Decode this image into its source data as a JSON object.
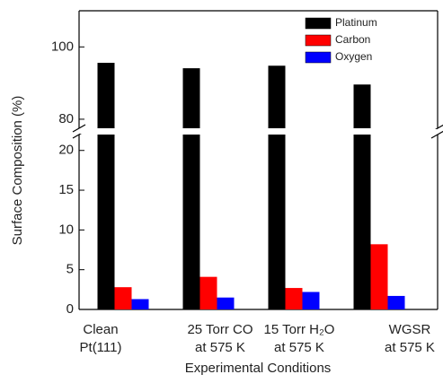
{
  "chart_data": {
    "type": "bar",
    "ylabel": "Surface Composition (%)",
    "xlabel": "Experimental Conditions",
    "categories": [
      [
        "Clean",
        "Pt(111)"
      ],
      [
        "25 Torr CO",
        "at 575 K"
      ],
      [
        "15 Torr H₂O",
        "at 575 K"
      ],
      [
        "WGSR",
        "at 575 K"
      ]
    ],
    "series": [
      {
        "name": "Platinum",
        "color": "#000000",
        "values": [
          95.6,
          94.1,
          94.8,
          89.6
        ]
      },
      {
        "name": "Carbon",
        "color": "#ff0000",
        "values": [
          2.8,
          4.1,
          2.7,
          8.2
        ]
      },
      {
        "name": "Oxygen",
        "color": "#0000ff",
        "values": [
          1.3,
          1.5,
          2.2,
          1.7
        ]
      }
    ],
    "ylim": [
      0,
      22
    ],
    "yticks": [
      0,
      5,
      10,
      15,
      20
    ],
    "ylim_upper": [
      77.5,
      110
    ],
    "yticks_upper": [
      80,
      100
    ],
    "legend": "upper right"
  }
}
